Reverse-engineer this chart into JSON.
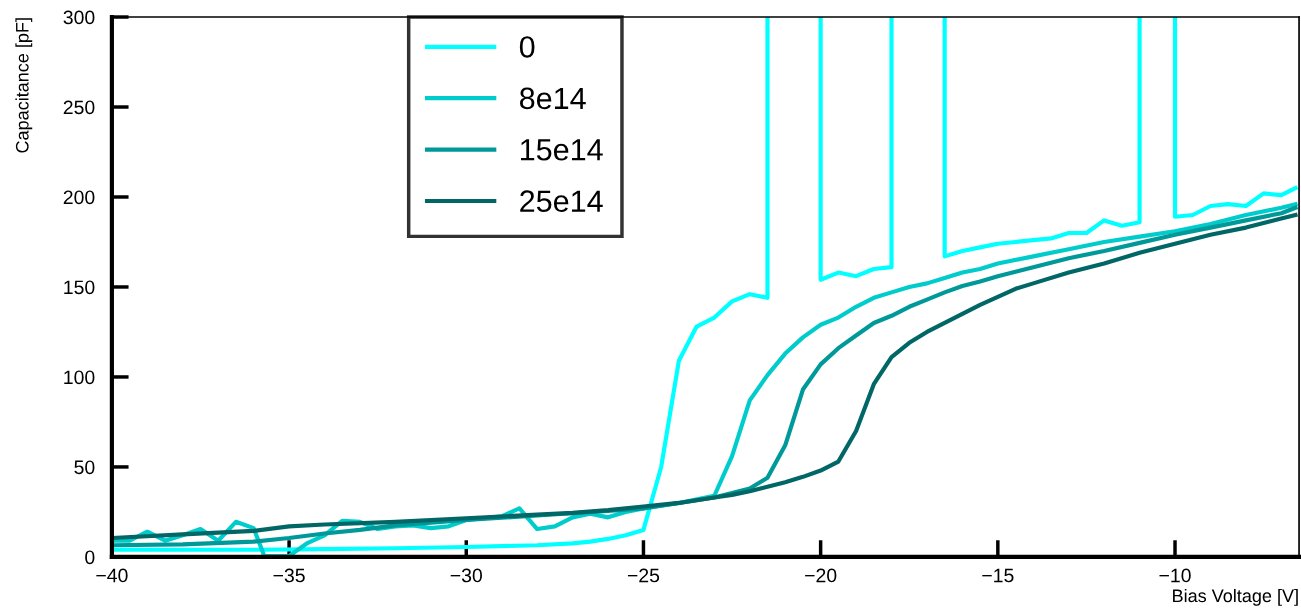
{
  "chart_data": {
    "type": "line",
    "xlabel": "Bias Voltage [V]",
    "ylabel": "Capacitance [pF]",
    "xlim": [
      -40,
      -6.5
    ],
    "xticks": [
      {
        "value": -40,
        "label": "−40"
      },
      {
        "value": -35,
        "label": "−35"
      },
      {
        "value": -30,
        "label": "−30"
      },
      {
        "value": -25,
        "label": "−25"
      },
      {
        "value": -20,
        "label": "−20"
      },
      {
        "value": -15,
        "label": "−15"
      },
      {
        "value": -10,
        "label": "−10"
      }
    ],
    "ylim": [
      0,
      300
    ],
    "yticks": [
      0,
      50,
      100,
      150,
      200,
      250,
      300
    ],
    "grid": false,
    "legend": "top",
    "marker": "none",
    "line_style": "solid",
    "series": [
      {
        "name": "0",
        "color": "#00ffff",
        "x": [
          -40,
          -38,
          -36,
          -34,
          -32,
          -30,
          -28,
          -27,
          -26.5,
          -26,
          -25.5,
          -25,
          -24.5,
          -24,
          -23.5,
          -23,
          -22.5,
          -22,
          -21.5,
          -21.5,
          -20.75,
          -20,
          -20,
          -19.5,
          -19,
          -18.5,
          -18,
          -18,
          -17.25,
          -16.5,
          -16.5,
          -16,
          -15.5,
          -15,
          -14.5,
          -14,
          -13.5,
          -13,
          -12.5,
          -12,
          -11.5,
          -11,
          -11,
          -10.5,
          -10,
          -10,
          -9.5,
          -9,
          -8.5,
          -8,
          -7.5,
          -7,
          -6.6
        ],
        "values": [
          4,
          4,
          4,
          4.3,
          4.8,
          5.5,
          6.5,
          7.5,
          8.5,
          10,
          12,
          15,
          50,
          109,
          128,
          133,
          142,
          146,
          144,
          300,
          null,
          300,
          154,
          158,
          156,
          160,
          161,
          300,
          null,
          300,
          167,
          170,
          172,
          174,
          175,
          176,
          177,
          180,
          180,
          187,
          184,
          186,
          300,
          null,
          300,
          189,
          190,
          195,
          196,
          195,
          202,
          201,
          205
        ]
      },
      {
        "name": "8e14",
        "color": "#00cccc",
        "x": [
          -40,
          -39.5,
          -39,
          -38.5,
          -38,
          -37.5,
          -37,
          -36.5,
          -36,
          -35.7,
          -35,
          -34.5,
          -34,
          -33.5,
          -33,
          -32.5,
          -32,
          -31.5,
          -31,
          -30.5,
          -30,
          -29.5,
          -29,
          -28.5,
          -28,
          -27.5,
          -27,
          -26.5,
          -26,
          -25.5,
          -25,
          -24,
          -23,
          -22.5,
          -22,
          -21.5,
          -21,
          -20.5,
          -20,
          -19.5,
          -19,
          -18.5,
          -18,
          -17.5,
          -17,
          -16.5,
          -16,
          -15.5,
          -15,
          -14,
          -13,
          -12,
          -11,
          -10,
          -9,
          -8,
          -7,
          -6.6
        ],
        "values": [
          9,
          9,
          14,
          9,
          12,
          15.5,
          9,
          19.5,
          16,
          0.5,
          0.5,
          7.5,
          12,
          20,
          19.5,
          15.5,
          17,
          17.5,
          16,
          17,
          20.5,
          21.5,
          22.5,
          27,
          15.5,
          17,
          22,
          24,
          22,
          25,
          27,
          30,
          34,
          56,
          87,
          101,
          113,
          122,
          129,
          133,
          139,
          144,
          147,
          150,
          152,
          155,
          158,
          160,
          163,
          167,
          171,
          175,
          178,
          181,
          185,
          190,
          194,
          196
        ]
      },
      {
        "name": "15e14",
        "color": "#009999",
        "x": [
          -40,
          -38,
          -36,
          -35,
          -34,
          -33,
          -32,
          -30,
          -28,
          -26,
          -25,
          -24,
          -23,
          -22,
          -21.5,
          -21,
          -20.5,
          -20,
          -19.5,
          -19,
          -18.5,
          -18,
          -17.5,
          -17,
          -16.5,
          -16,
          -15.5,
          -15,
          -14,
          -13,
          -12,
          -11,
          -10,
          -9,
          -8,
          -7,
          -6.6
        ],
        "values": [
          6.5,
          7,
          8.5,
          10.5,
          13,
          15,
          17.5,
          20.5,
          23,
          25.5,
          27,
          30,
          33,
          38,
          44,
          62,
          93,
          107,
          116,
          123,
          130,
          134,
          139,
          143,
          147,
          150.5,
          153,
          156,
          161,
          166,
          170,
          174.5,
          179,
          183,
          187,
          191,
          194
        ]
      },
      {
        "name": "25e14",
        "color": "#006666",
        "x": [
          -40,
          -38,
          -36,
          -35,
          -34,
          -32,
          -30,
          -28,
          -27,
          -26,
          -25,
          -24,
          -23,
          -22.5,
          -22,
          -21.5,
          -21,
          -20.5,
          -20,
          -19.5,
          -19,
          -18.5,
          -18,
          -17.5,
          -17,
          -16.5,
          -16,
          -15.5,
          -15,
          -14.5,
          -14,
          -13,
          -12,
          -11,
          -10,
          -9,
          -8,
          -7,
          -6.6
        ],
        "values": [
          10.5,
          12.5,
          14.5,
          17,
          18,
          19.5,
          21.5,
          23.5,
          24.5,
          26,
          28,
          30,
          33,
          34.5,
          36.5,
          39,
          41.5,
          44.5,
          48,
          53,
          70,
          96,
          111,
          119,
          125,
          130,
          135,
          140,
          144.5,
          149,
          152,
          158,
          163,
          169,
          174,
          179,
          183,
          188,
          190
        ]
      }
    ]
  }
}
